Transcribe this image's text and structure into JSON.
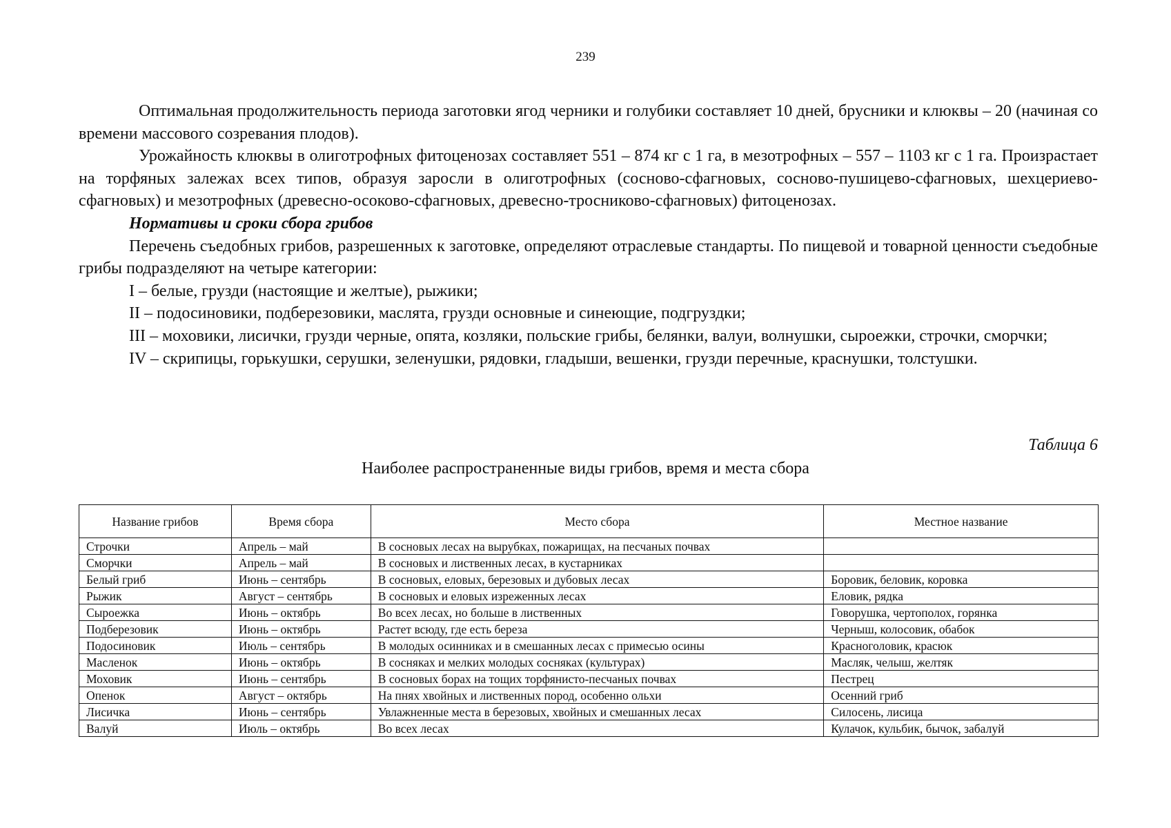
{
  "page_number": "239",
  "paragraphs": [
    "Оптимальная продолжительность периода заготовки ягод черники и голубики составляет 10 дней, брусники и клюквы – 20 (начиная со времени массового созревания плодов).",
    "Урожайность клюквы в олиготрофных фитоценозах составляет 551 – 874 кг с 1 га, в мезотрофных – 557 – 1103 кг с 1 га.  Произрастает на торфяных залежах  всех типов, образуя заросли в олиготрофных (сосново-сфагновых, сосново-пушицево-сфагновых, шехцериево-сфагновых) и мезотрофных (древесно-осоково-сфагновых, древесно-тросниково-сфагновых) фитоценозах."
  ],
  "section_heading": "Нормативы и сроки сбора грибов",
  "section_paragraphs": [
    "Перечень съедобных грибов, разрешенных к заготовке, определяют отраслевые стандарты. По пищевой и товарной ценности съедобные грибы подразделяют на четыре  категории:",
    "I – белые, грузди (настоящие и желтые), рыжики;",
    "II – подосиновики, подберезовики, маслята, грузди основные и синеющие, подгруздки;",
    "III – моховики, лисички, грузди черные, опята, козляки, польские грибы, белянки, валуи, волнушки, сыроежки, строчки, сморчки;",
    "IV – скрипицы, горькушки, серушки, зеленушки, рядовки, гладыши, вешенки, грузди перечные, краснушки, толстушки."
  ],
  "table_number": "Таблица 6",
  "table_caption": "Наиболее распространенные виды грибов, время и места сбора",
  "table": {
    "headers": [
      "Название грибов",
      "Время сбора",
      "Место сбора",
      "Местное название"
    ],
    "rows": [
      [
        "Строчки",
        "Апрель – май",
        "В сосновых лесах на вырубках, пожарищах, на песчаных почвах",
        ""
      ],
      [
        "Сморчки",
        "Апрель – май",
        "В сосновых и лиственных лесах, в кустарниках",
        ""
      ],
      [
        "Белый гриб",
        "Июнь – сентябрь",
        "В сосновых, еловых, березовых и дубовых лесах",
        "Боровик, беловик, коровка"
      ],
      [
        "Рыжик",
        "Август – сентябрь",
        "В сосновых и еловых изреженных лесах",
        "Еловик, рядка"
      ],
      [
        "Сыроежка",
        "Июнь – октябрь",
        "Во всех лесах, но больше в лиственных",
        "Говорушка, чертополох, горянка"
      ],
      [
        "Подберезовик",
        "Июнь – октябрь",
        "Растет всюду, где есть береза",
        "Черныш, колосовик, обабок"
      ],
      [
        "Подосиновик",
        "Июль – сентябрь",
        "В молодых осинниках и в смешанных лесах с примесью осины",
        "Красноголовик, красюк"
      ],
      [
        "Масленок",
        "Июнь – октябрь",
        "В сосняках и мелких молодых сосняках (культурах)",
        "Масляк, челыш, желтяк"
      ],
      [
        "Моховик",
        "Июнь – сентябрь",
        "В сосновых борах на тощих торфянисто-песчаных почвах",
        "Пестрец"
      ],
      [
        "Опенок",
        "Август – октябрь",
        "На пнях хвойных и лиственных пород, особенно  ольхи",
        "Осенний гриб"
      ],
      [
        "Лисичка",
        "Июнь – сентябрь",
        "Увлажненные места в березовых, хвойных и смешанных лесах",
        "Силосень, лисица"
      ],
      [
        "Валуй",
        "Июль – октябрь",
        "Во всех лесах",
        "Кулачок, кульбик, бычок, забалуй"
      ]
    ]
  }
}
